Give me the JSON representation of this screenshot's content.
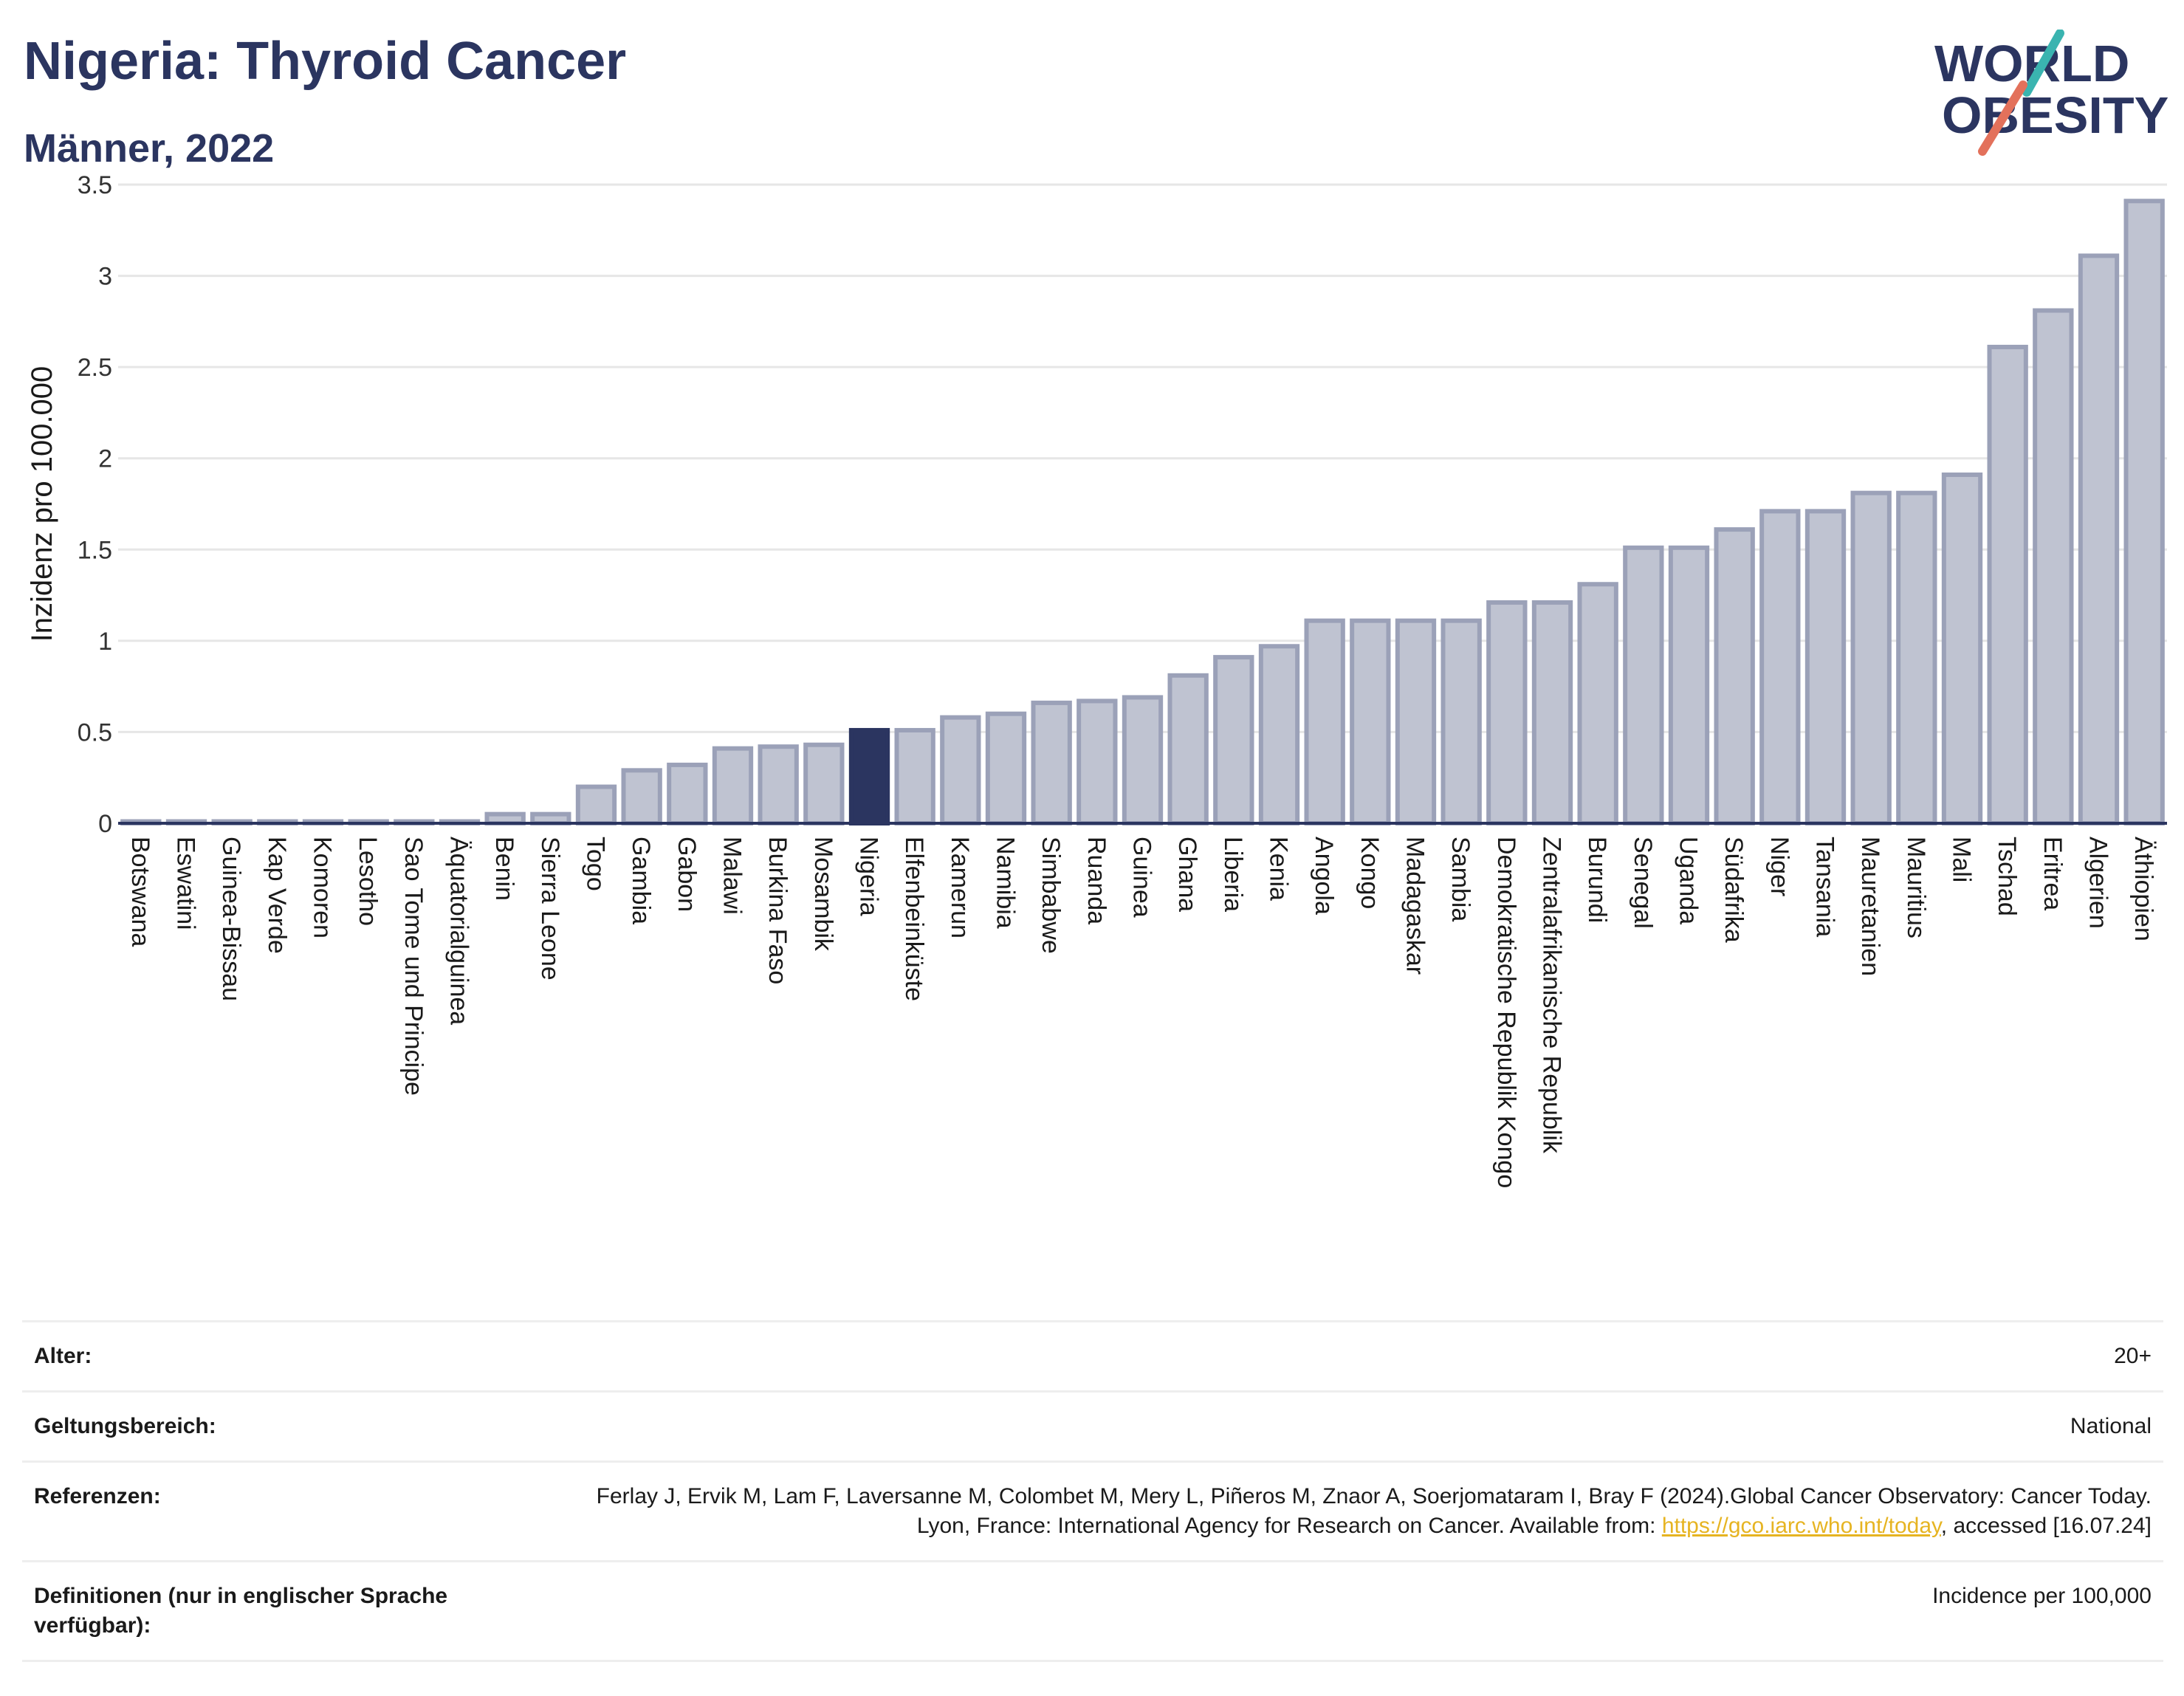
{
  "header": {
    "title": "Nigeria: Thyroid Cancer",
    "subtitle": "Männer, 2022"
  },
  "logo": {
    "line1": "WORLD",
    "line2": "OBESITY",
    "slash_colors": [
      "#3ab4b0",
      "#e3715b"
    ]
  },
  "colors": {
    "bar": "#bfc3d1",
    "bar_stroke": "#9ba1b8",
    "highlight": "#2b3560",
    "grid": "#e6e6e6"
  },
  "chart_data": {
    "type": "bar",
    "title": "Nigeria: Thyroid Cancer",
    "subtitle": "Männer, 2022",
    "xlabel": "",
    "ylabel": "Inzidenz pro 100.000",
    "ylim": [
      0,
      3.5
    ],
    "yticks": [
      0,
      0.5,
      1,
      1.5,
      2,
      2.5,
      3,
      3.5
    ],
    "ytick_labels": [
      "0",
      "0.5",
      "1",
      "1.5",
      "2",
      "2.5",
      "3",
      "3.5"
    ],
    "grid": true,
    "highlight": "Nigeria",
    "categories": [
      "Botswana",
      "Eswatini",
      "Guinea-Bissau",
      "Kap Verde",
      "Komoren",
      "Lesotho",
      "Sao Tome und Principe",
      "Äquatorialguinea",
      "Benin",
      "Sierra Leone",
      "Togo",
      "Gambia",
      "Gabon",
      "Malawi",
      "Burkina Faso",
      "Mosambik",
      "Nigeria",
      "Elfenbeinküste",
      "Kamerun",
      "Namibia",
      "Simbabwe",
      "Ruanda",
      "Guinea",
      "Ghana",
      "Liberia",
      "Kenia",
      "Angola",
      "Kongo",
      "Madagaskar",
      "Sambia",
      "Demokratische Republik Kongo",
      "Zentralafrikanische Republik",
      "Burundi",
      "Senegal",
      "Uganda",
      "Südafrika",
      "Niger",
      "Tansania",
      "Mauretanien",
      "Mauritius",
      "Mali",
      "Tschad",
      "Eritrea",
      "Algerien",
      "Äthiopien"
    ],
    "values": [
      0.01,
      0.01,
      0.01,
      0.01,
      0.01,
      0.01,
      0.01,
      0.01,
      0.05,
      0.05,
      0.2,
      0.29,
      0.32,
      0.41,
      0.42,
      0.43,
      0.51,
      0.51,
      0.58,
      0.6,
      0.66,
      0.67,
      0.69,
      0.81,
      0.91,
      0.97,
      1.11,
      1.11,
      1.11,
      1.11,
      1.21,
      1.21,
      1.31,
      1.51,
      1.51,
      1.61,
      1.71,
      1.71,
      1.81,
      1.81,
      1.91,
      2.61,
      2.81,
      3.11,
      3.41
    ]
  },
  "meta": {
    "rows": [
      {
        "key": "Alter:",
        "value": "20+"
      },
      {
        "key": "Geltungsbereich:",
        "value": "National"
      },
      {
        "key": "Referenzen:",
        "value_before": "Ferlay J, Ervik M, Lam F, Laversanne M, Colombet M, Mery L, Piñeros M, Znaor A, Soerjomataram I, Bray F (2024).Global Cancer Observatory: Cancer Today. Lyon, France: International Agency for Research on Cancer. Available from: ",
        "link": "https://gco.iarc.who.int/today",
        "value_after": ", accessed [16.07.24]"
      },
      {
        "key": "Definitionen (nur in englischer Sprache verfügbar):",
        "value": "Incidence per 100,000"
      }
    ]
  }
}
